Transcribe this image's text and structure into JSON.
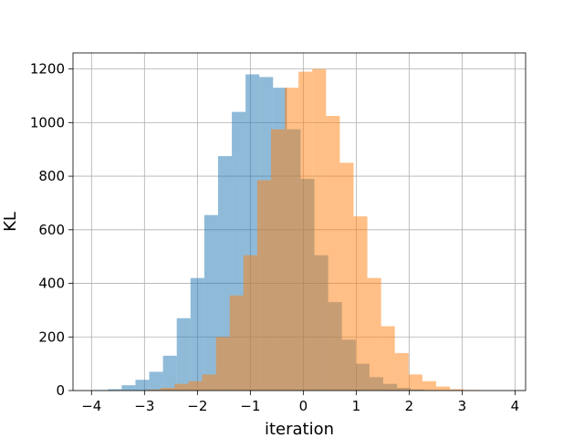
{
  "chart_data": {
    "type": "bar",
    "title": "",
    "xlabel": "iteration",
    "ylabel": "KL",
    "xlim": [
      -4.35,
      4.2
    ],
    "ylim": [
      0,
      1260
    ],
    "xticks": [
      -4,
      -3,
      -2,
      -1,
      0,
      1,
      2,
      3,
      4
    ],
    "yticks": [
      0,
      200,
      400,
      600,
      800,
      1000,
      1200
    ],
    "grid": true,
    "series": [
      {
        "color": "#1f77b4",
        "opacity": 0.5,
        "bin_edges": [
          -3.95,
          -3.69,
          -3.43,
          -3.17,
          -2.91,
          -2.65,
          -2.39,
          -2.13,
          -1.87,
          -1.61,
          -1.35,
          -1.09,
          -0.83,
          -0.57,
          -0.31,
          -0.05,
          0.21,
          0.47,
          0.73,
          0.99,
          1.25,
          1.51,
          1.77,
          2.03,
          2.29,
          2.55
        ],
        "counts": [
          2,
          5,
          20,
          40,
          70,
          130,
          270,
          420,
          655,
          875,
          1040,
          1180,
          1170,
          1130,
          975,
          790,
          505,
          330,
          190,
          100,
          50,
          25,
          10,
          4,
          1
        ]
      },
      {
        "color": "#ff7f0e",
        "opacity": 0.5,
        "bin_edges": [
          -2.95,
          -2.69,
          -2.43,
          -2.17,
          -1.91,
          -1.65,
          -1.39,
          -1.13,
          -0.87,
          -0.61,
          -0.35,
          -0.09,
          0.17,
          0.43,
          0.69,
          0.95,
          1.21,
          1.47,
          1.73,
          1.99,
          2.25,
          2.51,
          2.77,
          3.03,
          3.29
        ],
        "counts": [
          4,
          10,
          25,
          35,
          60,
          200,
          355,
          505,
          785,
          975,
          1130,
          1190,
          1200,
          1025,
          850,
          650,
          420,
          240,
          140,
          60,
          35,
          15,
          5,
          2
        ]
      }
    ]
  }
}
